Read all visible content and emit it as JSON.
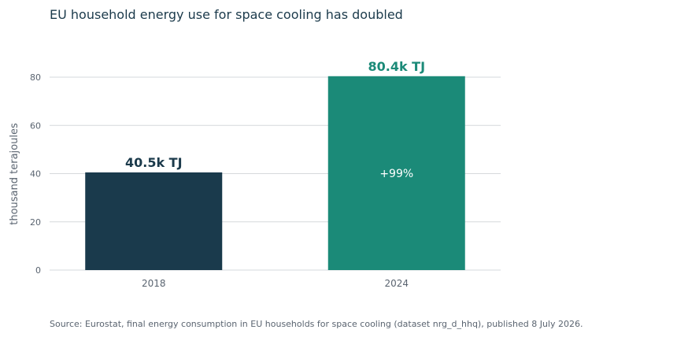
{
  "chart_data": {
    "type": "bar",
    "title": "EU household energy use for space cooling has doubled",
    "ylabel": "thousand terajoules",
    "xlabel": "",
    "ylim": [
      0,
      90
    ],
    "yticks": [
      0,
      20,
      40,
      60,
      80
    ],
    "grid": true,
    "categories": [
      "2018",
      "2024"
    ],
    "values": [
      40.5,
      80.4
    ],
    "value_labels": [
      "40.5k TJ",
      "80.4k TJ"
    ],
    "colors": [
      "#1a3a4c",
      "#1b8a78"
    ],
    "annotation": "+99%",
    "source": "Source: Eurostat, final energy consumption in EU households for space cooling (dataset nrg_d_hhq), published 8 July 2026."
  }
}
